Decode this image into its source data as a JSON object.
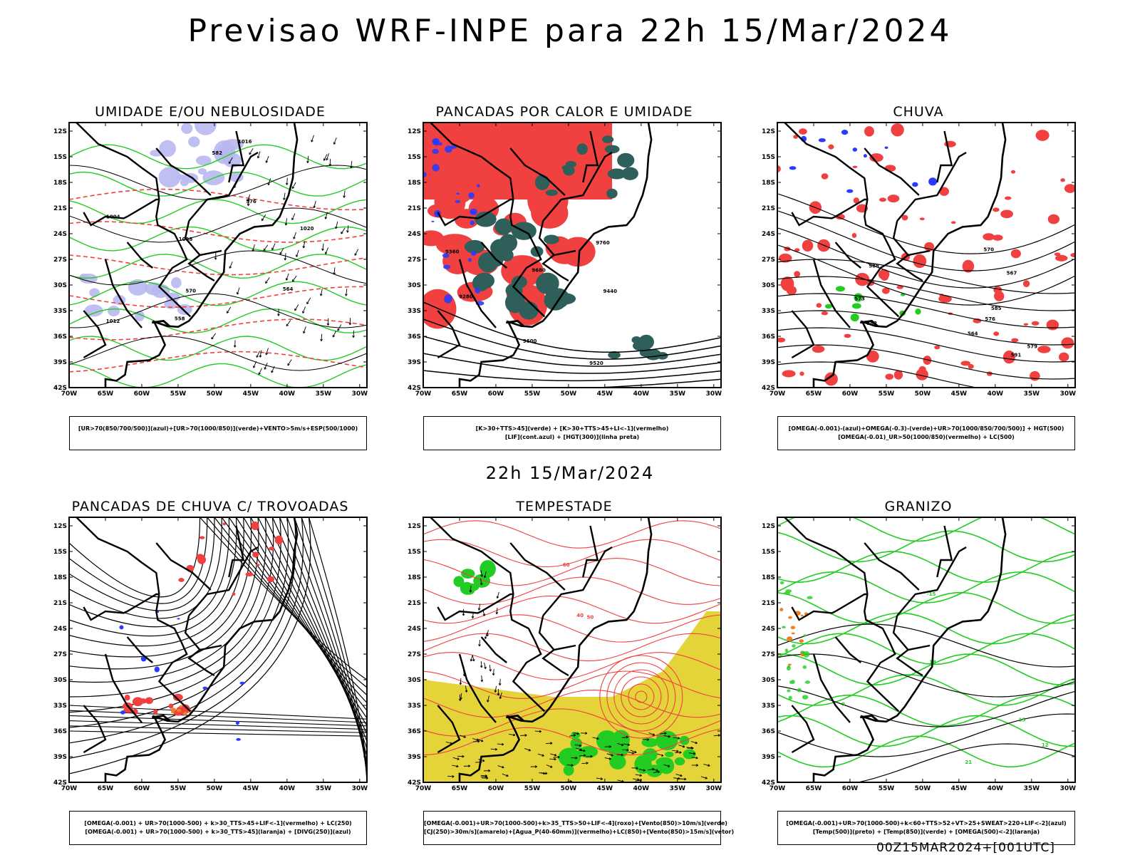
{
  "title": "Previsao WRF-INPE  para 22h 15/Mar/2024",
  "mid_title": "22h 15/Mar/2024",
  "footer": "00Z15MAR2024+[001UTC]",
  "lat_labels": [
    "12S",
    "15S",
    "18S",
    "21S",
    "24S",
    "27S",
    "30S",
    "33S",
    "36S",
    "39S",
    "42S"
  ],
  "lon_labels": [
    "70W",
    "65W",
    "60W",
    "55W",
    "50W",
    "45W",
    "40W",
    "35W",
    "30W"
  ],
  "colors": {
    "red": "#f04040",
    "green": "#22cc22",
    "blue": "#2a3bff",
    "lavender": "#b8b8f0",
    "darkteal": "#2f5f5a",
    "yellow": "#e4d43a",
    "orange": "#f08020"
  },
  "panels": [
    {
      "title": "UMIDADE E/OU NEBULOSIDADE",
      "legend": [
        "[UR>70(850/700/500)](azul)+[UR>70(1000/850)](verde)+VENTO>5m/s+ESP(500/1000)"
      ],
      "contour_labels": [
        "1012",
        "1008",
        "1016",
        "1020",
        "1004",
        "582",
        "576",
        "570",
        "564",
        "558"
      ]
    },
    {
      "title": "PANCADAS POR CALOR E UMIDADE",
      "legend": [
        "[K>30+TTS>45](verde) + [K>30+TTS>45+LI<-1](vermelho)",
        "[LIF](cont.azul) + [HGT(300)](linha preta)"
      ],
      "contour_labels": [
        "9680",
        "9760",
        "9600",
        "9520",
        "9440",
        "9360",
        "9280"
      ]
    },
    {
      "title": "CHUVA",
      "legend": [
        "[OMEGA(-0.001)-(azul)+OMEGA(-0.3)-(verde)+UR>70(1000/850/700/500)] + HGT(500)",
        "[OMEGA(-0.01)_UR>50(1000/850)(vermelho) + LC(500)"
      ],
      "contour_labels": [
        "591",
        "588",
        "585",
        "582",
        "579",
        "576",
        "573",
        "570",
        "567",
        "564"
      ]
    },
    {
      "title": "PANCADAS DE CHUVA C/ TROVOADAS",
      "legend": [
        "[OMEGA(-0.001) + UR>70(1000-500) + k>30_TTS>45+LIF<-1](vermelho) + LC(250)",
        "[OMEGA(-0.001) + UR>70(1000-500) + k>30_TTS>45](laranja) + [DIVG(250)](azul)"
      ],
      "contour_labels": []
    },
    {
      "title": "TEMPESTADE",
      "legend": [
        "[OMEGA(-0.001)+UR>70(1000-500)+k>35_TTS>50+LIF<-4](roxo)+[Vento(850)>10m/s](verde)",
        "[CJ(250)>30m/s](amarelo)+[Agua_P(40-60mm)](vermelho)+LC(850)+[Vento(850)>15m/s](vetor)"
      ],
      "contour_labels": [
        "40",
        "50",
        "60"
      ]
    },
    {
      "title": "GRANIZO",
      "legend": [
        "[OMEGA(-0.001)+UR>70(1000-500)+k<60+TTS>52+VT>25+SWEAT>220+LIF<-2](azul)",
        "[Temp(500)](preto) + [Temp(850)](verde) + [OMEGA(500)<-2](laranja)"
      ],
      "contour_labels": [
        "-15",
        "15",
        "18",
        "21",
        "12",
        "9"
      ]
    }
  ]
}
